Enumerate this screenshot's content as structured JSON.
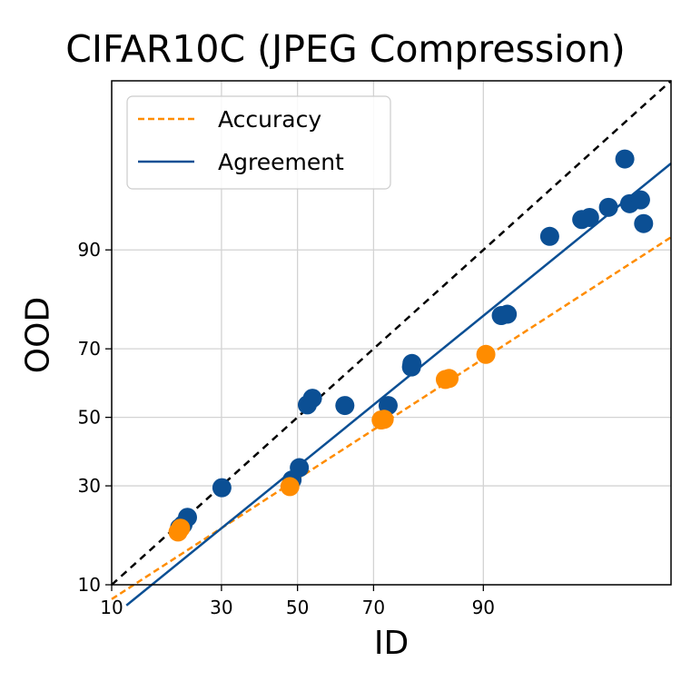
{
  "chart_data": {
    "type": "scatter",
    "title": "CIFAR10C (JPEG Compression)",
    "xlabel": "ID",
    "ylabel": "OOD",
    "scale": "probit",
    "xlim": [
      10,
      99.5
    ],
    "ylim": [
      10,
      99.5
    ],
    "xticks": [
      "10",
      "30",
      "50",
      "70",
      "90"
    ],
    "yticks": [
      "10",
      "30",
      "50",
      "70",
      "90"
    ],
    "grid": true,
    "legend_position": "top-left",
    "colors": {
      "accuracy": "#ff8c00",
      "agreement": "#0b4f94",
      "diagonal": "#000000",
      "grid": "#d3d3d3"
    },
    "series": [
      {
        "name": "Accuracy",
        "style": "dashed-line",
        "fit_line": {
          "x": [
            10,
            99.5
          ],
          "y": [
            8.2,
            91.6
          ]
        },
        "points": [
          {
            "x": 20.5,
            "y": 19.0
          },
          {
            "x": 21.0,
            "y": 19.8
          },
          {
            "x": 47.9,
            "y": 29.8
          },
          {
            "x": 71.8,
            "y": 49.2
          },
          {
            "x": 72.5,
            "y": 49.4
          },
          {
            "x": 84.6,
            "y": 61.4
          },
          {
            "x": 85.2,
            "y": 61.7
          },
          {
            "x": 90.3,
            "y": 68.5
          }
        ]
      },
      {
        "name": "Agreement",
        "style": "solid-line",
        "fit_line": {
          "x": [
            11.9,
            99.5
          ],
          "y": [
            7.5,
            97.4
          ]
        },
        "points": [
          {
            "x": 20.8,
            "y": 19.9
          },
          {
            "x": 21.5,
            "y": 20.6
          },
          {
            "x": 22.4,
            "y": 22.2
          },
          {
            "x": 30.1,
            "y": 29.5
          },
          {
            "x": 48.5,
            "y": 31.6
          },
          {
            "x": 50.5,
            "y": 35.0
          },
          {
            "x": 52.7,
            "y": 53.8
          },
          {
            "x": 54.1,
            "y": 55.8
          },
          {
            "x": 62.8,
            "y": 53.6
          },
          {
            "x": 73.4,
            "y": 53.6
          },
          {
            "x": 78.4,
            "y": 65.0
          },
          {
            "x": 78.5,
            "y": 66.0
          },
          {
            "x": 92.0,
            "y": 78.2
          },
          {
            "x": 92.6,
            "y": 78.5
          },
          {
            "x": 95.9,
            "y": 91.7
          },
          {
            "x": 97.5,
            "y": 93.5
          },
          {
            "x": 97.8,
            "y": 93.7
          },
          {
            "x": 98.4,
            "y": 94.6
          },
          {
            "x": 98.8,
            "y": 97.6
          },
          {
            "x": 98.9,
            "y": 94.9
          },
          {
            "x": 99.1,
            "y": 95.2
          },
          {
            "x": 99.15,
            "y": 93.1
          }
        ]
      },
      {
        "name": "",
        "style": "diagonal",
        "fit_line": {
          "x": [
            10,
            99.5
          ],
          "y": [
            10,
            99.5
          ]
        },
        "points": []
      }
    ]
  }
}
